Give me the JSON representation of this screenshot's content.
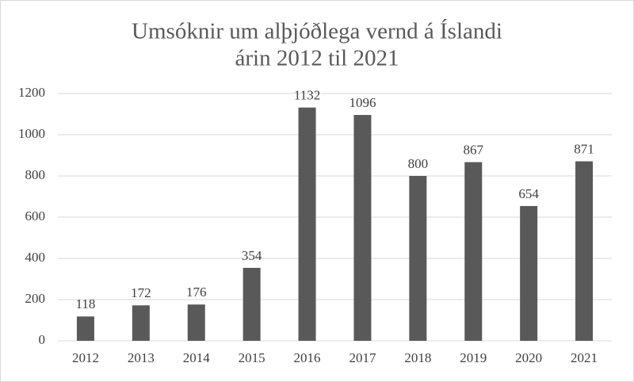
{
  "chart_data": {
    "type": "bar",
    "title": [
      "Umsóknir um alþjóðlega vernd á Íslandi",
      "árin 2012 til 2021"
    ],
    "categories": [
      "2012",
      "2013",
      "2014",
      "2015",
      "2016",
      "2017",
      "2018",
      "2019",
      "2020",
      "2021"
    ],
    "values": [
      118,
      172,
      176,
      354,
      1132,
      1096,
      800,
      867,
      654,
      871
    ],
    "color": "#595959",
    "ylim": [
      0,
      1200
    ],
    "yticks": [
      0,
      200,
      400,
      600,
      800,
      1000,
      1200
    ],
    "grid": true
  }
}
